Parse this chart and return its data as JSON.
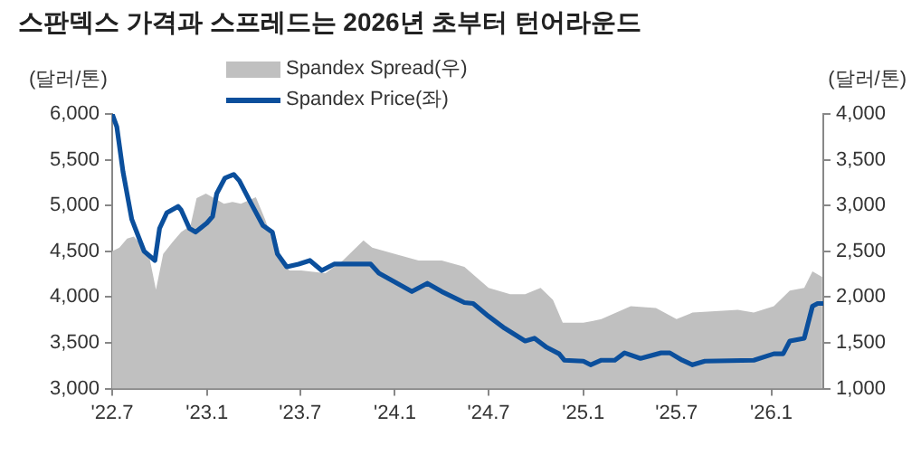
{
  "chart_data": {
    "type": "line",
    "title": "스판덱스 가격과 스프레드는 2026년 초부터 턴어라운드",
    "ylabel": "(달러/톤)",
    "y2label": "(달러/톤)",
    "legend": "top",
    "grid": false,
    "xlim": [
      "2022-07-01",
      "2026-04-12"
    ],
    "xticks": [
      {
        "value": "2022-07-01",
        "label": "'22.7"
      },
      {
        "value": "2023-01-01",
        "label": "'23.1"
      },
      {
        "value": "2023-07-01",
        "label": "'23.7"
      },
      {
        "value": "2024-01-01",
        "label": "'24.1"
      },
      {
        "value": "2024-07-01",
        "label": "'24.7"
      },
      {
        "value": "2025-01-01",
        "label": "'25.1"
      },
      {
        "value": "2025-07-01",
        "label": "'25.7"
      },
      {
        "value": "2026-01-01",
        "label": "'26.1"
      }
    ],
    "ylim": [
      3000,
      6000
    ],
    "yticks": [
      {
        "value": 3000,
        "label": "3,000"
      },
      {
        "value": 3500,
        "label": "3,500"
      },
      {
        "value": 4000,
        "label": "4,000"
      },
      {
        "value": 4500,
        "label": "4,500"
      },
      {
        "value": 5000,
        "label": "5,000"
      },
      {
        "value": 5500,
        "label": "5,500"
      },
      {
        "value": 6000,
        "label": "6,000"
      }
    ],
    "y2lim": [
      1000,
      4000
    ],
    "y2ticks": [
      {
        "value": 1000,
        "label": "1,000"
      },
      {
        "value": 1500,
        "label": "1,500"
      },
      {
        "value": 2000,
        "label": "2,000"
      },
      {
        "value": 2500,
        "label": "2,500"
      },
      {
        "value": 3000,
        "label": "3,000"
      },
      {
        "value": 3500,
        "label": "3,500"
      },
      {
        "value": 4000,
        "label": "4,000"
      }
    ],
    "series": [
      {
        "name": "Spandex Spread(우)",
        "type": "area",
        "axis": "y2",
        "color": "#c0c0c0",
        "x": [
          "2022-07-01",
          "2022-07-15",
          "2022-07-30",
          "2022-08-12",
          "2022-08-26",
          "2022-09-10",
          "2022-09-24",
          "2022-10-08",
          "2022-10-26",
          "2022-11-12",
          "2022-11-30",
          "2022-12-12",
          "2022-12-30",
          "2023-01-22",
          "2023-02-03",
          "2023-02-20",
          "2023-03-08",
          "2023-04-06",
          "2023-04-24",
          "2023-05-17",
          "2023-06-10",
          "2023-07-03",
          "2023-08-19",
          "2023-09-22",
          "2023-11-01",
          "2023-11-18",
          "2024-01-01",
          "2024-02-16",
          "2024-04-01",
          "2024-05-15",
          "2024-07-01",
          "2024-08-12",
          "2024-09-10",
          "2024-10-10",
          "2024-11-03",
          "2024-11-22",
          "2025-01-01",
          "2025-01-20",
          "2025-02-05",
          "2025-04-03",
          "2025-05-22",
          "2025-07-01",
          "2025-08-01",
          "2025-10-28",
          "2025-11-28",
          "2026-01-06",
          "2026-02-06",
          "2026-03-06",
          "2026-03-22",
          "2026-04-10"
        ],
        "values": [
          2500,
          2540,
          2640,
          2660,
          2570,
          2470,
          2080,
          2470,
          2600,
          2710,
          2780,
          3080,
          3130,
          3060,
          3020,
          3040,
          3020,
          3090,
          2850,
          2470,
          2290,
          2290,
          2260,
          2400,
          2620,
          2540,
          2470,
          2400,
          2400,
          2330,
          2100,
          2030,
          2030,
          2100,
          1970,
          1720,
          1720,
          1740,
          1760,
          1900,
          1880,
          1760,
          1830,
          1860,
          1830,
          1900,
          2070,
          2100,
          2280,
          2220
        ]
      },
      {
        "name": "Spandex Price(좌)",
        "type": "line",
        "color": "#0b4f9c",
        "x": [
          "2022-07-01",
          "2022-07-10",
          "2022-07-22",
          "2022-08-08",
          "2022-09-01",
          "2022-09-22",
          "2022-10-01",
          "2022-10-15",
          "2022-11-06",
          "2022-11-12",
          "2022-11-28",
          "2022-12-10",
          "2023-01-01",
          "2023-01-12",
          "2023-01-20",
          "2023-02-05",
          "2023-02-22",
          "2023-03-05",
          "2023-03-28",
          "2023-04-20",
          "2023-05-08",
          "2023-05-18",
          "2023-06-05",
          "2023-06-28",
          "2023-07-20",
          "2023-08-12",
          "2023-09-05",
          "2023-10-20",
          "2023-11-15",
          "2023-12-01",
          "2024-02-03",
          "2024-03-04",
          "2024-04-01",
          "2024-05-15",
          "2024-06-01",
          "2024-07-01",
          "2024-08-01",
          "2024-09-10",
          "2024-09-28",
          "2024-10-22",
          "2024-11-15",
          "2024-11-25",
          "2025-01-01",
          "2025-01-15",
          "2025-02-05",
          "2025-03-03",
          "2025-03-22",
          "2025-04-22",
          "2025-06-01",
          "2025-06-18",
          "2025-07-12",
          "2025-08-01",
          "2025-08-25",
          "2025-11-28",
          "2026-01-06",
          "2026-01-24",
          "2026-02-06",
          "2026-03-06",
          "2026-03-22",
          "2026-04-01",
          "2026-04-10"
        ],
        "values": [
          6000,
          5860,
          5370,
          4850,
          4500,
          4400,
          4750,
          4920,
          4990,
          4950,
          4750,
          4710,
          4810,
          4880,
          5130,
          5300,
          5340,
          5270,
          5020,
          4780,
          4710,
          4470,
          4330,
          4360,
          4400,
          4290,
          4360,
          4360,
          4360,
          4260,
          4060,
          4150,
          4060,
          3940,
          3930,
          3790,
          3660,
          3520,
          3550,
          3450,
          3380,
          3310,
          3300,
          3260,
          3310,
          3310,
          3390,
          3330,
          3390,
          3390,
          3310,
          3260,
          3300,
          3310,
          3380,
          3380,
          3520,
          3550,
          3900,
          3930,
          3930
        ]
      }
    ]
  }
}
